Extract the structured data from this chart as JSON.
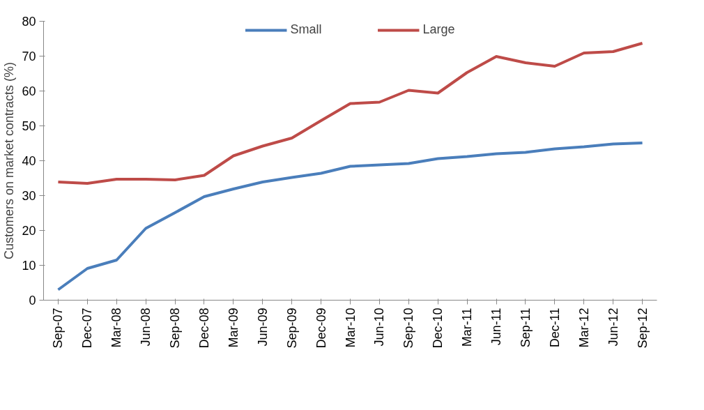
{
  "chart_data": {
    "type": "line",
    "ylabel": "Customers on market contracts (%)",
    "categories": [
      "Sep-07",
      "Dec-07",
      "Mar-08",
      "Jun-08",
      "Sep-08",
      "Dec-08",
      "Mar-09",
      "Jun-09",
      "Sep-09",
      "Dec-09",
      "Mar-10",
      "Jun-10",
      "Sep-10",
      "Dec-10",
      "Mar-11",
      "Jun-11",
      "Sep-11",
      "Dec-11",
      "Mar-12",
      "Jun-12",
      "Sep-12"
    ],
    "series": [
      {
        "name": "Small",
        "color": "#4a7ebb",
        "values": [
          3,
          9.1,
          11.5,
          20.6,
          25.1,
          29.7,
          31.9,
          33.9,
          35.2,
          36.4,
          38.4,
          38.8,
          39.2,
          40.6,
          41.2,
          42,
          42.4,
          43.4,
          44,
          44.8,
          45.1
        ]
      },
      {
        "name": "Large",
        "color": "#be4b48",
        "values": [
          33.9,
          33.5,
          34.7,
          34.7,
          34.5,
          35.8,
          41.4,
          44.2,
          46.5,
          51.5,
          56.4,
          56.8,
          60.2,
          59.4,
          65.3,
          69.9,
          68.1,
          67.1,
          70.9,
          71.3,
          73.7
        ]
      }
    ],
    "ylim": [
      0,
      80
    ],
    "yticks": [
      0,
      10,
      20,
      30,
      40,
      50,
      60,
      70,
      80
    ],
    "grid": false,
    "legend": "top",
    "marker": "none",
    "line_style": "solid"
  }
}
